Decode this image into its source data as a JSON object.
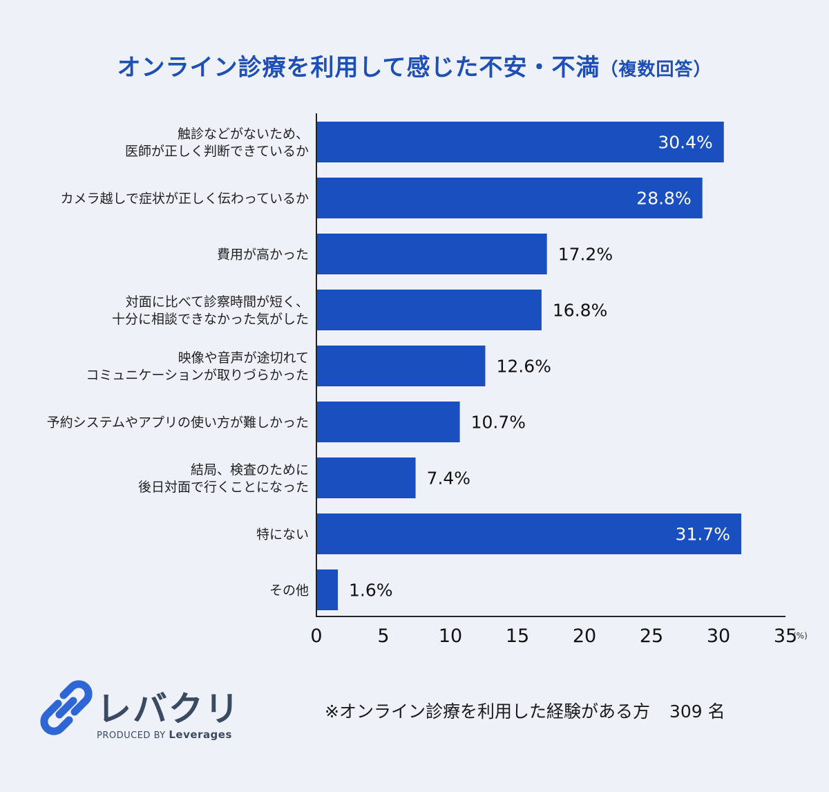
{
  "title": {
    "main": "オンライン診療を利用して感じた不安・不満",
    "sub": "（複数回答）"
  },
  "chart_data": {
    "type": "bar",
    "orientation": "horizontal",
    "categories": [
      [
        "触診などがないため、",
        "医師が正しく判断できているか"
      ],
      [
        "カメラ越しで症状が正しく伝わっているか"
      ],
      [
        "費用が高かった"
      ],
      [
        "対面に比べて診察時間が短く、",
        "十分に相談できなかった気がした"
      ],
      [
        "映像や音声が途切れて",
        "コミュニケーションが取りづらかった"
      ],
      [
        "予約システムやアプリの使い方が難しかった"
      ],
      [
        "結局、検査のために",
        "後日対面で行くことになった"
      ],
      [
        "特にない"
      ],
      [
        "その他"
      ]
    ],
    "values": [
      30.4,
      28.8,
      17.2,
      16.8,
      12.6,
      10.7,
      7.4,
      31.7,
      1.6
    ],
    "value_labels": [
      "30.4%",
      "28.8%",
      "17.2%",
      "16.8%",
      "12.6%",
      "10.7%",
      "7.4%",
      "31.7%",
      "1.6%"
    ],
    "xticks": [
      "0",
      "5",
      "10",
      "15",
      "20",
      "25",
      "30",
      "35"
    ],
    "xlim": [
      0,
      35
    ],
    "x_unit": "(%)",
    "bar_color": "#1a4fbf",
    "grid": false
  },
  "logo": {
    "name": "レバクリ",
    "byline_prefix": "PRODUCED BY",
    "byline_brand": "Leverages",
    "icon": "chain-link-icon",
    "color": "#2f66d6"
  },
  "note": {
    "text": "※オンライン診療を利用した経験がある方",
    "count": "309 名"
  }
}
